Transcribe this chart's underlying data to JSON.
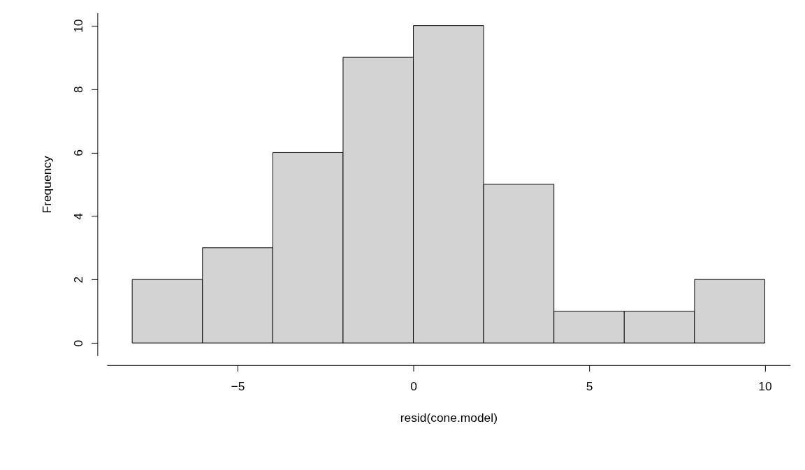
{
  "chart_data": {
    "type": "histogram",
    "xlabel": "resid(cone.model)",
    "ylabel": "Frequency",
    "bins": [
      -8,
      -6,
      -4,
      -2,
      0,
      2,
      4,
      6,
      8,
      10
    ],
    "values": [
      2,
      3,
      6,
      9,
      10,
      5,
      1,
      1,
      2
    ],
    "color": "#d3d3d3",
    "xlim": [
      -8.72,
      10.72
    ],
    "ylim": [
      -0.4,
      10.4
    ],
    "xticks": [
      -5,
      0,
      5,
      10
    ],
    "yticks": [
      0,
      2,
      4,
      6,
      8,
      10
    ]
  }
}
